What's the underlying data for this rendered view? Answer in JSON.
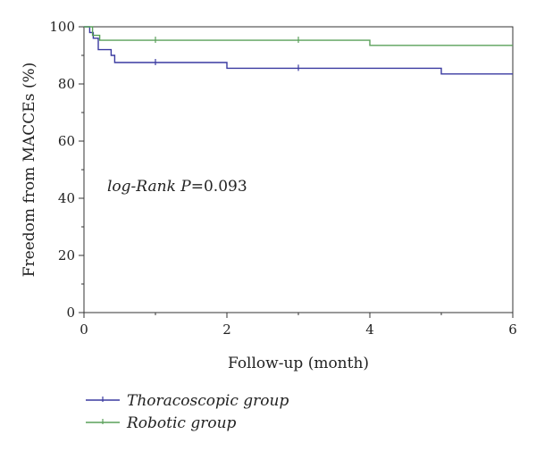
{
  "chart_data": {
    "type": "line",
    "step": true,
    "title": "",
    "xlabel": "Follow-up (month)",
    "ylabel": "Freedom from MACCEs (%)",
    "xlim": [
      0,
      6
    ],
    "ylim": [
      0,
      100
    ],
    "xticks": [
      0,
      2,
      4,
      6
    ],
    "yticks": [
      0,
      20,
      40,
      60,
      80,
      100
    ],
    "grid": false,
    "legend_position": "bottom-left",
    "annotation": {
      "prefix": "log-Rank ",
      "italic": "P",
      "value": "=0.093"
    },
    "series": [
      {
        "name": "Thoracoscopic group",
        "color": "#3a3aa0",
        "points": [
          [
            0,
            100
          ],
          [
            0.08,
            98
          ],
          [
            0.13,
            96
          ],
          [
            0.2,
            92
          ],
          [
            0.38,
            90
          ],
          [
            0.43,
            87.5
          ],
          [
            2,
            85.5
          ],
          [
            5,
            83.5
          ],
          [
            6,
            83.5
          ]
        ],
        "censored": [
          [
            1,
            87.5
          ],
          [
            3,
            85.5
          ]
        ]
      },
      {
        "name": "Robotic group",
        "color": "#5aa05a",
        "points": [
          [
            0,
            100
          ],
          [
            0.12,
            97
          ],
          [
            0.22,
            95.3
          ],
          [
            4,
            93.5
          ],
          [
            6,
            93.5
          ]
        ],
        "censored": [
          [
            1,
            95.3
          ],
          [
            3,
            95.3
          ]
        ]
      }
    ]
  }
}
